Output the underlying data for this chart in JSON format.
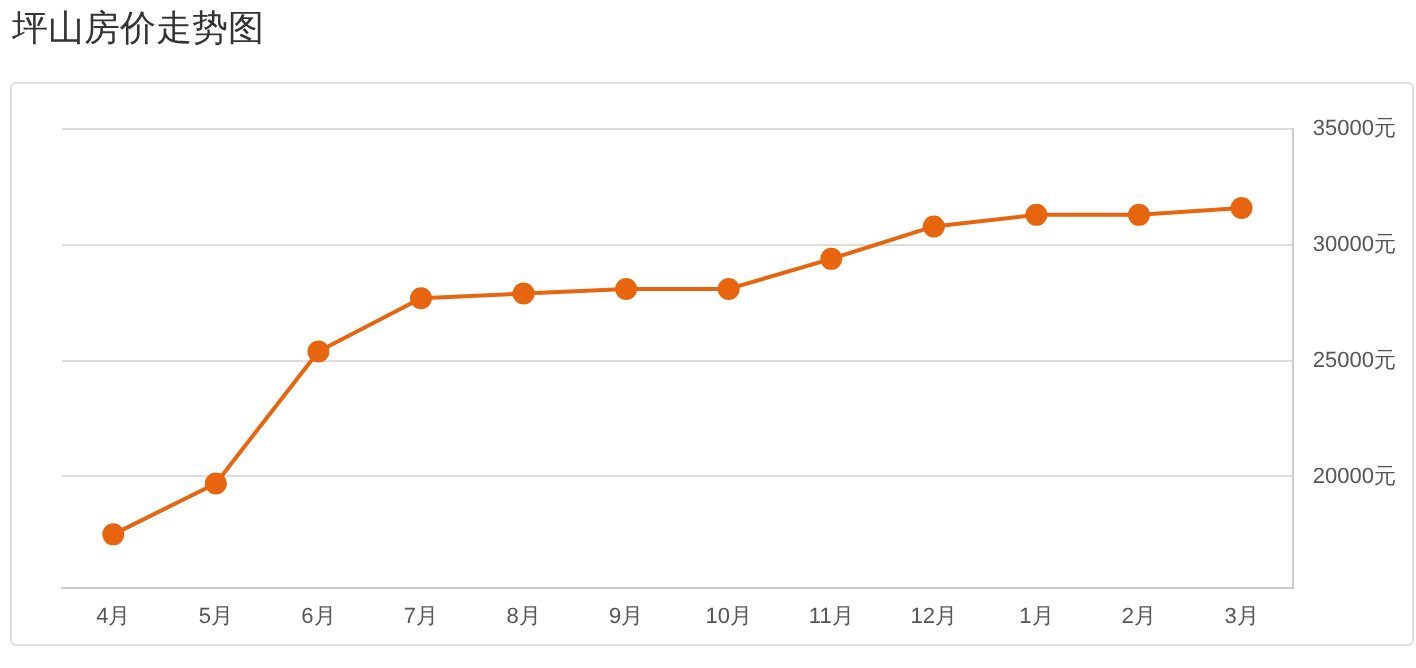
{
  "chart_data": {
    "type": "line",
    "title": "坪山房价走势图",
    "categories": [
      "4月",
      "5月",
      "6月",
      "7月",
      "8月",
      "9月",
      "10月",
      "11月",
      "12月",
      "1月",
      "2月",
      "3月"
    ],
    "series": [
      {
        "color": "#e8650f",
        "values": [
          17500,
          19700,
          25400,
          27700,
          27900,
          28100,
          28100,
          29400,
          30800,
          31300,
          31300,
          31600
        ]
      }
    ],
    "ylim": [
      15200,
      35000
    ],
    "yticks": [
      {
        "value": 20000,
        "label": "20000元"
      },
      {
        "value": 25000,
        "label": "25000元"
      },
      {
        "value": 30000,
        "label": "30000元"
      },
      {
        "value": 35000,
        "label": "35000元"
      }
    ],
    "grid": "y",
    "legend": false,
    "marker": "circle",
    "line_style": "solid"
  }
}
